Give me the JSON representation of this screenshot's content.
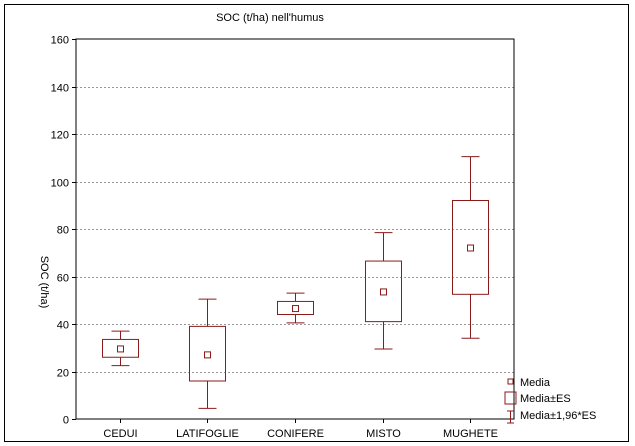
{
  "chart_data": {
    "type": "box",
    "title": "SOC (t/ha) nell'humus",
    "ylabel": "SOC (t/ha)",
    "xlabel": "",
    "ylim": [
      0,
      160
    ],
    "yticks": [
      0,
      20,
      40,
      60,
      80,
      100,
      120,
      140,
      160
    ],
    "grid": true,
    "legend_position": "bottom-right",
    "color": "#8b1a1a",
    "categories": [
      "CEDUI",
      "LATIFOGLIE",
      "CONIFERE",
      "MISTO",
      "MUGHETE"
    ],
    "series": [
      {
        "category": "CEDUI",
        "mean": 29.5,
        "es_low": 26,
        "es_high": 33.5,
        "ci_low": 22.5,
        "ci_high": 37
      },
      {
        "category": "LATIFOGLIE",
        "mean": 27,
        "es_low": 16,
        "es_high": 39,
        "ci_low": 4.5,
        "ci_high": 50.5
      },
      {
        "category": "CONIFERE",
        "mean": 46.5,
        "es_low": 44,
        "es_high": 49.5,
        "ci_low": 40.5,
        "ci_high": 53
      },
      {
        "category": "MISTO",
        "mean": 53.5,
        "es_low": 41,
        "es_high": 66.5,
        "ci_low": 29.5,
        "ci_high": 78.5
      },
      {
        "category": "MUGHETE",
        "mean": 72,
        "es_low": 52.5,
        "es_high": 92,
        "ci_low": 34,
        "ci_high": 110.5
      }
    ],
    "legend": [
      "Media",
      "Media±ES",
      "Media±1,96*ES"
    ]
  }
}
